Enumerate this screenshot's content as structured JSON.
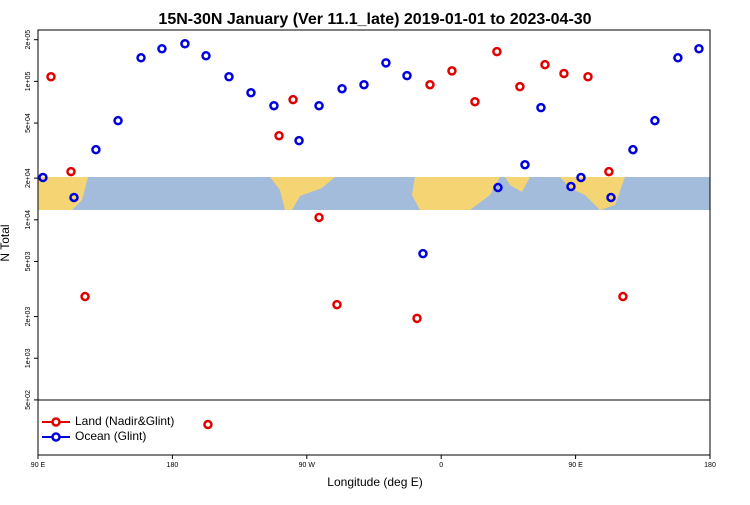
{
  "chart_data": {
    "type": "scatter",
    "title": "15N-30N January (Ver 11.1_late)   2019-01-01 to 2023-04-30",
    "xlabel": "Longitude (deg E)",
    "ylabel": "N Total",
    "xlim": [
      90,
      540
    ],
    "xticks": [
      {
        "value": 90,
        "label": "90 E"
      },
      180,
      {
        "value": 270,
        "label": "90 W"
      },
      0,
      {
        "value": 450,
        "label": "90 E"
      },
      {
        "value": 540,
        "label": "180"
      }
    ],
    "ylim": [
      200,
      235000
    ],
    "log_y": true,
    "yticks": [
      {
        "value": 500,
        "label": "5e+02"
      },
      {
        "value": 1000,
        "label": "1e+03"
      },
      {
        "value": 2000,
        "label": "2e+03"
      },
      {
        "value": 5000,
        "label": "5e+03"
      },
      {
        "value": 10000,
        "label": "1e+04"
      },
      {
        "value": 20000,
        "label": "2e+04"
      },
      {
        "value": 50000,
        "label": "5e+04"
      },
      {
        "value": 100000,
        "label": "1e+05"
      },
      {
        "value": 200000,
        "label": "2e+05"
      }
    ],
    "legend": "lower left",
    "series": [
      {
        "name": "Land (Nadir&Glint)",
        "color": "#e00000",
        "x": [
          98.7,
          112.1,
          121.5,
          203.8,
          251.4,
          260.8,
          278.2,
          290.2,
          343.8,
          352.5,
          367.2,
          382.6,
          397.3,
          412.7,
          429.5,
          442.2,
          458.3,
          472.3,
          481.7
        ],
        "values": [
          108000,
          22300,
          2790,
          332,
          40500,
          73800,
          10400,
          2440,
          1940,
          94600,
          119000,
          71300,
          164000,
          91600,
          132000,
          114000,
          108000,
          22300,
          2790
        ]
      },
      {
        "name": "Ocean (Glint)",
        "color": "#0000dd",
        "x": [
          93.3,
          114.1,
          128.8,
          143.6,
          159,
          173,
          188.4,
          202.5,
          217.9,
          232.6,
          248,
          264.8,
          278.2,
          293.6,
          308.3,
          323,
          337.1,
          347.8,
          398,
          416.1,
          426.8,
          446.9,
          453.6,
          473.7,
          488.4,
          503.1,
          518.5,
          532.6
        ],
        "values": [
          20200,
          14500,
          32100,
          52000,
          148000,
          172000,
          187000,
          153000,
          108000,
          82800,
          66700,
          37300,
          66700,
          88500,
          94600,
          136000,
          110000,
          5700,
          17100,
          25000,
          64600,
          17400,
          20200,
          14500,
          32100,
          52000,
          148000,
          172000
        ]
      }
    ]
  }
}
